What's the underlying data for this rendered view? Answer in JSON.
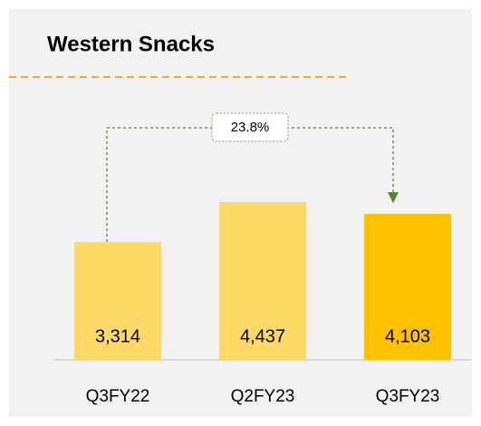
{
  "chart_data": {
    "type": "bar",
    "title": "Western Snacks",
    "categories": [
      "Q3FY22",
      "Q2FY23",
      "Q3FY23"
    ],
    "values": [
      3314,
      4437,
      4103
    ],
    "value_labels": [
      "3,314",
      "4,437",
      "4,103"
    ],
    "colors": [
      "#ffd966",
      "#ffd966",
      "#ffc000"
    ],
    "annotation": "23.8%"
  }
}
